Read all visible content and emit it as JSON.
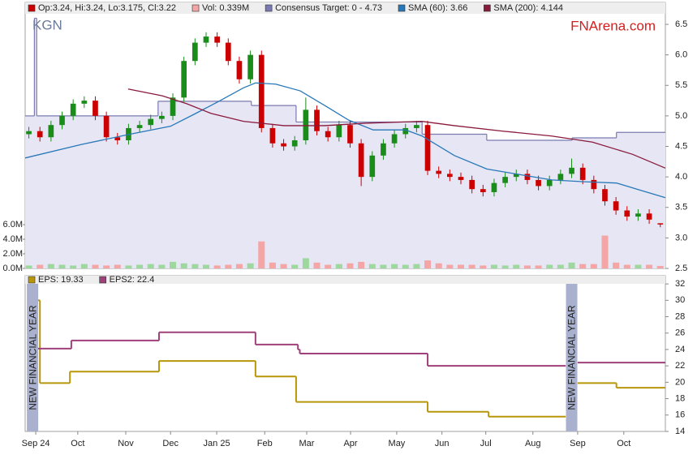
{
  "chart_data": [
    {
      "type": "candlestick",
      "title": "KGN",
      "source": "FNArena.com",
      "xlim": [
        -0.23,
        13.64
      ],
      "ylim": [
        2.5,
        6.66
      ],
      "yticks": [
        2.5,
        {
          "value": 3,
          "label": "3.0"
        },
        3.5,
        {
          "value": 4,
          "label": "4.0"
        },
        4.5,
        {
          "value": 5,
          "label": "5.0"
        },
        5.5,
        {
          "value": 6,
          "label": "6.0"
        },
        6.5
      ],
      "y2lim": [
        0,
        34.8
      ],
      "y2ticks": [
        {
          "value": 0,
          "label": "0.0M"
        },
        {
          "value": 2,
          "label": "2.0M"
        },
        {
          "value": 4,
          "label": "4.0M"
        },
        {
          "value": 6,
          "label": "6.0M"
        }
      ],
      "x": [
        -0.15,
        0.09,
        0.33,
        0.57,
        0.81,
        1.05,
        1.29,
        1.53,
        1.77,
        2.01,
        2.25,
        2.49,
        2.73,
        2.97,
        3.21,
        3.45,
        3.69,
        3.93,
        4.17,
        4.41,
        4.65,
        4.89,
        5.13,
        5.37,
        5.61,
        5.85,
        6.09,
        6.33,
        6.57,
        6.81,
        7.05,
        7.29,
        7.53,
        7.77,
        8.01,
        8.25,
        8.49,
        8.73,
        8.97,
        9.21,
        9.45,
        9.69,
        9.93,
        10.17,
        10.41,
        10.65,
        10.89,
        11.13,
        11.37,
        11.61,
        11.85,
        12.09,
        12.33,
        12.57,
        12.81,
        13.05,
        13.29,
        13.53
      ],
      "ohlc": {
        "name": "Op:3.24, Hi:3.24, Lo:3.175, Cl:3.22",
        "color": "#cc0000",
        "up_color": "#1a8c1a",
        "down_color": "#cc0000",
        "open": [
          4.7,
          4.75,
          4.65,
          4.85,
          5.0,
          5.2,
          5.25,
          5.0,
          4.65,
          4.6,
          4.8,
          4.85,
          4.95,
          5.0,
          5.3,
          5.9,
          6.2,
          6.3,
          6.2,
          5.9,
          5.6,
          6.0,
          4.8,
          4.55,
          4.5,
          4.6,
          5.1,
          4.75,
          4.65,
          4.85,
          4.55,
          4.0,
          4.35,
          4.55,
          4.7,
          4.8,
          4.85,
          4.1,
          4.05,
          4.0,
          3.95,
          3.8,
          3.75,
          3.9,
          4.0,
          4.05,
          3.95,
          3.85,
          3.95,
          4.05,
          4.15,
          3.95,
          3.8,
          3.6,
          3.45,
          3.35,
          3.4,
          3.24
        ],
        "high": [
          4.82,
          4.82,
          4.92,
          5.07,
          5.27,
          5.32,
          5.32,
          5.07,
          4.72,
          4.87,
          4.92,
          5.02,
          5.07,
          5.37,
          5.97,
          6.27,
          6.37,
          6.37,
          6.27,
          5.97,
          6.07,
          6.07,
          4.87,
          4.62,
          4.67,
          5.3,
          5.17,
          4.82,
          4.92,
          4.92,
          4.62,
          4.42,
          4.62,
          4.77,
          4.87,
          4.92,
          4.92,
          4.17,
          4.12,
          4.07,
          4.02,
          3.87,
          3.97,
          4.07,
          4.12,
          4.12,
          4.02,
          4.02,
          4.12,
          4.3,
          4.22,
          4.02,
          3.87,
          3.67,
          3.52,
          3.47,
          3.47,
          3.24
        ],
        "low": [
          4.63,
          4.58,
          4.58,
          4.78,
          4.93,
          5.13,
          4.93,
          4.58,
          4.53,
          4.53,
          4.73,
          4.78,
          4.88,
          4.93,
          5.23,
          5.83,
          6.13,
          6.13,
          5.83,
          5.53,
          5.53,
          4.73,
          4.48,
          4.43,
          4.43,
          4.53,
          4.68,
          4.58,
          4.58,
          4.48,
          3.85,
          3.93,
          4.28,
          4.48,
          4.63,
          4.73,
          4.03,
          3.98,
          3.93,
          3.88,
          3.73,
          3.68,
          3.68,
          3.83,
          3.93,
          3.88,
          3.78,
          3.78,
          3.88,
          3.98,
          3.88,
          3.73,
          3.53,
          3.38,
          3.28,
          3.28,
          3.23,
          3.175
        ],
        "close": [
          4.75,
          4.65,
          4.85,
          5.0,
          5.2,
          5.25,
          5.0,
          4.65,
          4.6,
          4.8,
          4.85,
          4.95,
          5.0,
          5.3,
          5.9,
          6.2,
          6.3,
          6.2,
          5.9,
          5.6,
          6.0,
          4.8,
          4.55,
          4.5,
          4.6,
          5.1,
          4.75,
          4.65,
          4.85,
          4.55,
          4.0,
          4.35,
          4.55,
          4.7,
          4.8,
          4.85,
          4.1,
          4.05,
          4.0,
          3.95,
          3.8,
          3.75,
          3.9,
          4.0,
          4.05,
          3.95,
          3.85,
          3.95,
          4.05,
          4.15,
          3.95,
          3.8,
          3.6,
          3.45,
          3.35,
          3.4,
          3.3,
          3.22
        ]
      },
      "series": [
        {
          "name": "Vol: 0.339M",
          "kind": "bar",
          "axis": "y2",
          "color": "#f4a6a6",
          "up_color": "#9ed89e",
          "down_color": "#f4a6a6",
          "values": [
            0.4,
            0.5,
            0.6,
            0.5,
            0.4,
            0.6,
            0.5,
            0.4,
            0.5,
            0.4,
            0.5,
            0.6,
            0.5,
            0.9,
            0.7,
            0.6,
            0.5,
            0.4,
            0.5,
            0.6,
            0.7,
            3.7,
            0.8,
            0.6,
            0.5,
            1.4,
            0.8,
            0.5,
            0.6,
            0.7,
            0.9,
            0.6,
            0.5,
            0.6,
            0.5,
            0.6,
            1.1,
            0.7,
            0.5,
            0.5,
            0.5,
            0.4,
            0.5,
            0.4,
            0.5,
            0.4,
            0.4,
            0.5,
            0.5,
            0.8,
            0.6,
            0.6,
            4.5,
            0.8,
            0.5,
            0.5,
            0.5,
            0.339
          ]
        },
        {
          "name": "Consensus Target: 0 - 4.73",
          "kind": "step",
          "color": "#7a7ab0",
          "fill": "#e6e6f5",
          "x": [
            -0.23,
            -0.03,
            0.02,
            2.65,
            4.67,
            5.64,
            8.37,
            9.77,
            11.62,
            12.58
          ],
          "values": [
            5.0,
            6.6,
            5.0,
            5.24,
            5.17,
            4.9,
            4.7,
            4.6,
            4.64,
            4.73
          ]
        },
        {
          "name": "SMA (60): 3.66",
          "kind": "line",
          "color": "#2878b8",
          "x": [
            -0.23,
            0.98,
            2.04,
            2.92,
            3.44,
            3.97,
            4.5,
            4.76,
            5.2,
            5.73,
            6.26,
            6.78,
            7.31,
            8.01,
            8.37,
            9.07,
            9.77,
            10.47,
            11.18,
            11.88,
            12.58,
            13.11,
            13.64
          ],
          "values": [
            4.31,
            4.53,
            4.7,
            4.83,
            5.03,
            5.24,
            5.46,
            5.54,
            5.52,
            5.41,
            5.17,
            4.93,
            4.77,
            4.77,
            4.67,
            4.35,
            4.13,
            4.04,
            3.95,
            3.92,
            3.9,
            3.78,
            3.66
          ]
        },
        {
          "name": "SMA (200): 4.144",
          "kind": "line",
          "color": "#8a1a3c",
          "x": [
            2.0,
            2.74,
            3.27,
            3.8,
            4.5,
            5.38,
            6.26,
            7.14,
            8.37,
            9.07,
            10.12,
            11.18,
            12.06,
            12.93,
            13.64
          ],
          "values": [
            5.44,
            5.33,
            5.2,
            5.04,
            4.91,
            4.84,
            4.84,
            4.88,
            4.91,
            4.84,
            4.75,
            4.67,
            4.57,
            4.37,
            4.144
          ]
        }
      ]
    },
    {
      "type": "line",
      "step": true,
      "xlim": [
        -0.23,
        13.64
      ],
      "ylim": [
        14,
        33
      ],
      "yticks": [
        14,
        16,
        18,
        20,
        22,
        24,
        26,
        28,
        30,
        32
      ],
      "xticks": [
        {
          "value": 0,
          "label": "Sep 24"
        },
        {
          "value": 0.91,
          "label": "Oct"
        },
        {
          "value": 1.95,
          "label": "Nov"
        },
        {
          "value": 2.92,
          "label": "Dec"
        },
        {
          "value": 3.92,
          "label": "Jan 25"
        },
        {
          "value": 4.96,
          "label": "Feb"
        },
        {
          "value": 5.87,
          "label": "Mar"
        },
        {
          "value": 6.82,
          "label": "Apr"
        },
        {
          "value": 7.82,
          "label": "May"
        },
        {
          "value": 8.8,
          "label": "Jun"
        },
        {
          "value": 9.75,
          "label": "Jul"
        },
        {
          "value": 10.77,
          "label": "Aug"
        },
        {
          "value": 11.74,
          "label": "Sep"
        },
        {
          "value": 12.74,
          "label": "Oct"
        }
      ],
      "series": [
        {
          "name": "EPS: 19.33",
          "color": "#b8960a",
          "x": [
            0.05,
            0.09,
            0.74,
            2.67,
            4.76,
            5.64,
            8.49,
            9.81,
            11.48,
            11.74,
            12.58,
            13.64
          ],
          "values": [
            30,
            19.9,
            21.3,
            22.6,
            20.7,
            17.6,
            16.4,
            15.8,
            null,
            19.9,
            19.33,
            19.33
          ]
        },
        {
          "name": "EPS2: 22.4",
          "color": "#a0407a",
          "x": [
            0.05,
            0.77,
            2.67,
            4.76,
            5.68,
            5.72,
            8.49,
            11.48,
            11.74,
            13.64
          ],
          "values": [
            24.1,
            25.1,
            26.1,
            24.6,
            24.0,
            23.5,
            22.0,
            null,
            22.4,
            22.4
          ]
        }
      ],
      "annotations": [
        {
          "text": "NEW FINANCIAL YEAR",
          "x": -0.07
        },
        {
          "text": "NEW FINANCIAL YEAR",
          "x": 11.61
        }
      ]
    }
  ]
}
